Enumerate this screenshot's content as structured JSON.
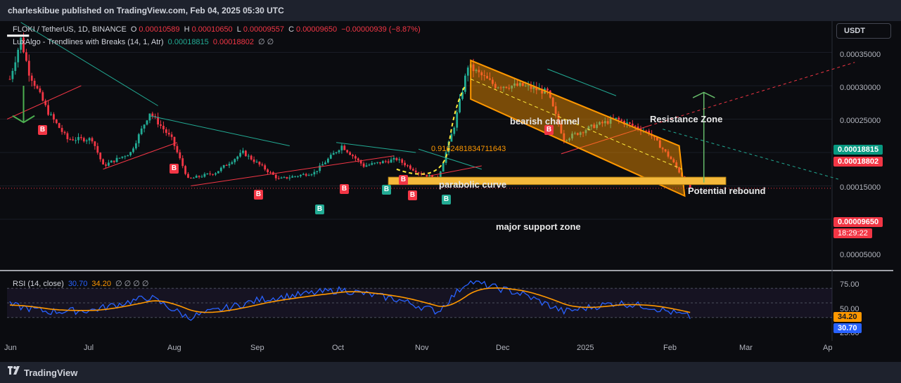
{
  "header": {
    "published": "charleskibue published on TradingView.com, Feb 04, 2025 05:30 UTC"
  },
  "legend": {
    "symbol": "FLOKI / TetherUS, 1D, BINANCE",
    "o_label": "O",
    "o_value": "0.00010589",
    "h_label": "H",
    "h_value": "0.00010650",
    "l_label": "L",
    "l_value": "0.00009557",
    "c_label": "C",
    "c_value": "0.00009650",
    "change": "−0.00000939 (−8.87%)",
    "indicator_name": "LuxAlgo - Trendlines with Breaks (14, 1, Atr)",
    "ind_v1": "0.00018815",
    "ind_v2": "0.00018802",
    "ind_v3": "∅ ∅",
    "rsi_name": "RSI (14, close)",
    "rsi_v1": "30.70",
    "rsi_v2": "34.20",
    "rsi_rest": "∅ ∅ ∅ ∅"
  },
  "currency_button": "USDT",
  "price_axis": [
    "0.00035000",
    "0.00030000",
    "0.00025000",
    "0.00015000",
    "0.00005000"
  ],
  "price_badges": {
    "upper_line": "0.00018815",
    "lower_line": "0.00018802",
    "last_price": "0.00009650",
    "countdown": "18:29:22"
  },
  "rsi_axis": [
    "75.00",
    "50.00",
    "25.00"
  ],
  "rsi_badges": {
    "rsi_ma": "34.20",
    "rsi": "30.70"
  },
  "time_axis": [
    "Jun",
    "Jul",
    "Aug",
    "Sep",
    "Oct",
    "Nov",
    "Dec",
    "2025",
    "Feb",
    "Mar",
    "Ap"
  ],
  "annotations": {
    "bearish_channel": "bearish channel",
    "parabolic_curve": "parabolic curve",
    "resistance_zone": "Resistance Zone",
    "potential_rebound": "Potential rebound",
    "major_support_zone": "major support zone",
    "fib_label": "0.9162481834711643"
  },
  "signal_letters": {
    "break_down": "B",
    "break_up": "B"
  },
  "footer": {
    "brand": "TradingView"
  },
  "colors": {
    "up": "#22ab94",
    "down": "#f23645",
    "channel": "#ff9800",
    "rsi": "#2962ff",
    "rsi_ma": "#ff9800",
    "background": "#0b0c10"
  },
  "chart_data": {
    "type": "candlestick",
    "symbol": "FLOKI / TetherUS",
    "interval": "1D",
    "ylim": [
      3e-05,
      0.00037
    ],
    "x_ticks": [
      "Jun",
      "Jul",
      "Aug",
      "Sep",
      "Oct",
      "Nov",
      "Dec",
      "2025",
      "Feb",
      "Mar",
      "Ap"
    ],
    "close_path": [
      {
        "date": "2024-06-01",
        "close": 0.00026
      },
      {
        "date": "2024-06-05",
        "close": 0.00032
      },
      {
        "date": "2024-06-08",
        "close": 0.00027
      },
      {
        "date": "2024-06-15",
        "close": 0.00021
      },
      {
        "date": "2024-06-22",
        "close": 0.00017
      },
      {
        "date": "2024-07-01",
        "close": 0.00017
      },
      {
        "date": "2024-07-05",
        "close": 0.00013
      },
      {
        "date": "2024-07-15",
        "close": 0.00015
      },
      {
        "date": "2024-07-22",
        "close": 0.00021
      },
      {
        "date": "2024-07-30",
        "close": 0.00017
      },
      {
        "date": "2024-08-05",
        "close": 0.00011
      },
      {
        "date": "2024-08-15",
        "close": 0.00012
      },
      {
        "date": "2024-08-25",
        "close": 0.00015
      },
      {
        "date": "2024-09-07",
        "close": 0.00011
      },
      {
        "date": "2024-09-20",
        "close": 0.00012
      },
      {
        "date": "2024-09-30",
        "close": 0.00016
      },
      {
        "date": "2024-10-08",
        "close": 0.00013
      },
      {
        "date": "2024-10-20",
        "close": 0.00014
      },
      {
        "date": "2024-10-28",
        "close": 0.00012
      },
      {
        "date": "2024-11-04",
        "close": 0.00011
      },
      {
        "date": "2024-11-10",
        "close": 0.00019
      },
      {
        "date": "2024-11-15",
        "close": 0.00028
      },
      {
        "date": "2024-11-25",
        "close": 0.00025
      },
      {
        "date": "2024-12-05",
        "close": 0.00025
      },
      {
        "date": "2024-12-14",
        "close": 0.00024
      },
      {
        "date": "2024-12-20",
        "close": 0.00017
      },
      {
        "date": "2024-12-31",
        "close": 0.00019
      },
      {
        "date": "2025-01-08",
        "close": 0.0002
      },
      {
        "date": "2025-01-20",
        "close": 0.00018
      },
      {
        "date": "2025-01-28",
        "close": 0.00014
      },
      {
        "date": "2025-02-04",
        "close": 9.65e-05
      }
    ],
    "last": {
      "open": 0.00010589,
      "high": 0.0001065,
      "low": 9.557e-05,
      "close": 9.65e-05,
      "change": -9.39e-06,
      "change_pct": -8.87
    },
    "trendline_values": [
      0.00018815,
      0.00018802
    ],
    "rsi": {
      "period": 14,
      "ylim": [
        20,
        80
      ],
      "levels": [
        75,
        50,
        25
      ],
      "rsi_last": 30.7,
      "rsi_ma_last": 34.2,
      "path": [
        {
          "date": "2024-06-01",
          "rsi": 47
        },
        {
          "date": "2024-06-15",
          "rsi": 38
        },
        {
          "date": "2024-07-01",
          "rsi": 40
        },
        {
          "date": "2024-07-22",
          "rsi": 58
        },
        {
          "date": "2024-08-05",
          "rsi": 30
        },
        {
          "date": "2024-09-01",
          "rsi": 55
        },
        {
          "date": "2024-09-30",
          "rsi": 68
        },
        {
          "date": "2024-10-20",
          "rsi": 55
        },
        {
          "date": "2024-11-04",
          "rsi": 38
        },
        {
          "date": "2024-11-15",
          "rsi": 80
        },
        {
          "date": "2024-12-05",
          "rsi": 62
        },
        {
          "date": "2024-12-20",
          "rsi": 38
        },
        {
          "date": "2025-01-08",
          "rsi": 50
        },
        {
          "date": "2025-01-20",
          "rsi": 45
        },
        {
          "date": "2025-02-04",
          "rsi": 30.7
        }
      ]
    }
  }
}
